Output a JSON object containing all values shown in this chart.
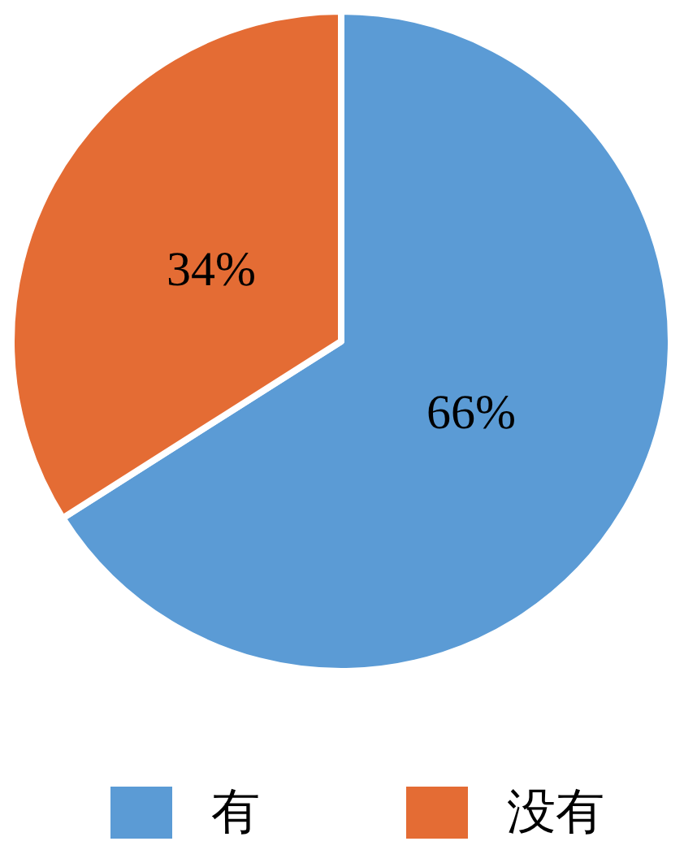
{
  "chart_data": {
    "type": "pie",
    "categories": [
      "有",
      "没有"
    ],
    "values": [
      66,
      34
    ],
    "colors": [
      "#5b9bd5",
      "#e46c34"
    ],
    "value_labels": [
      "66%",
      "34%"
    ],
    "legend": "bottom"
  }
}
